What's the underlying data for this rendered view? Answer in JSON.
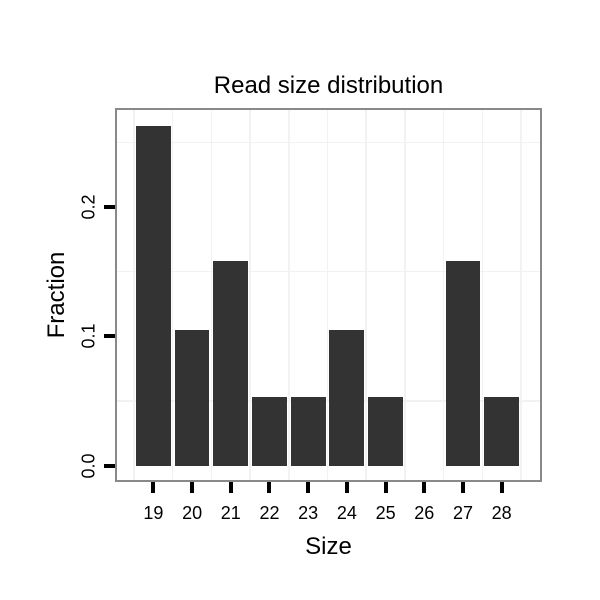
{
  "chart_data": {
    "type": "bar",
    "title": "Read size distribution",
    "xlabel": "Size",
    "ylabel": "Fraction",
    "categories": [
      19,
      20,
      21,
      22,
      23,
      24,
      25,
      26,
      27,
      28
    ],
    "values": [
      0.263,
      0.105,
      0.158,
      0.053,
      0.053,
      0.105,
      0.053,
      0,
      0.158,
      0.053
    ],
    "x_tick_labels": [
      "19",
      "20",
      "21",
      "22",
      "23",
      "24",
      "25",
      "26",
      "27",
      "28"
    ],
    "y_tick_labels": [
      "0.0",
      "0.1",
      "0.2"
    ],
    "y_tick_values": [
      0,
      0.1,
      0.2
    ],
    "xlim": [
      18.06,
      28.99
    ],
    "ylim": [
      -0.011,
      0.275
    ],
    "minor_gridlines_x": [
      18.5,
      19.5,
      20.5,
      21.5,
      22.5,
      23.5,
      24.5,
      25.5,
      26.5,
      27.5,
      28.5
    ],
    "minor_gridlines_y": [
      0.05,
      0.15,
      0.25
    ],
    "bar_width_fraction": 0.9,
    "grid": "minor gridlines only, majors not visible",
    "legend_position": "none",
    "colors": {
      "bar_fill": "#333333",
      "panel_border": "#898989",
      "gridline": "#f2f2f2",
      "tick": "#000000",
      "text": "#000000",
      "background": "#ffffff"
    }
  }
}
